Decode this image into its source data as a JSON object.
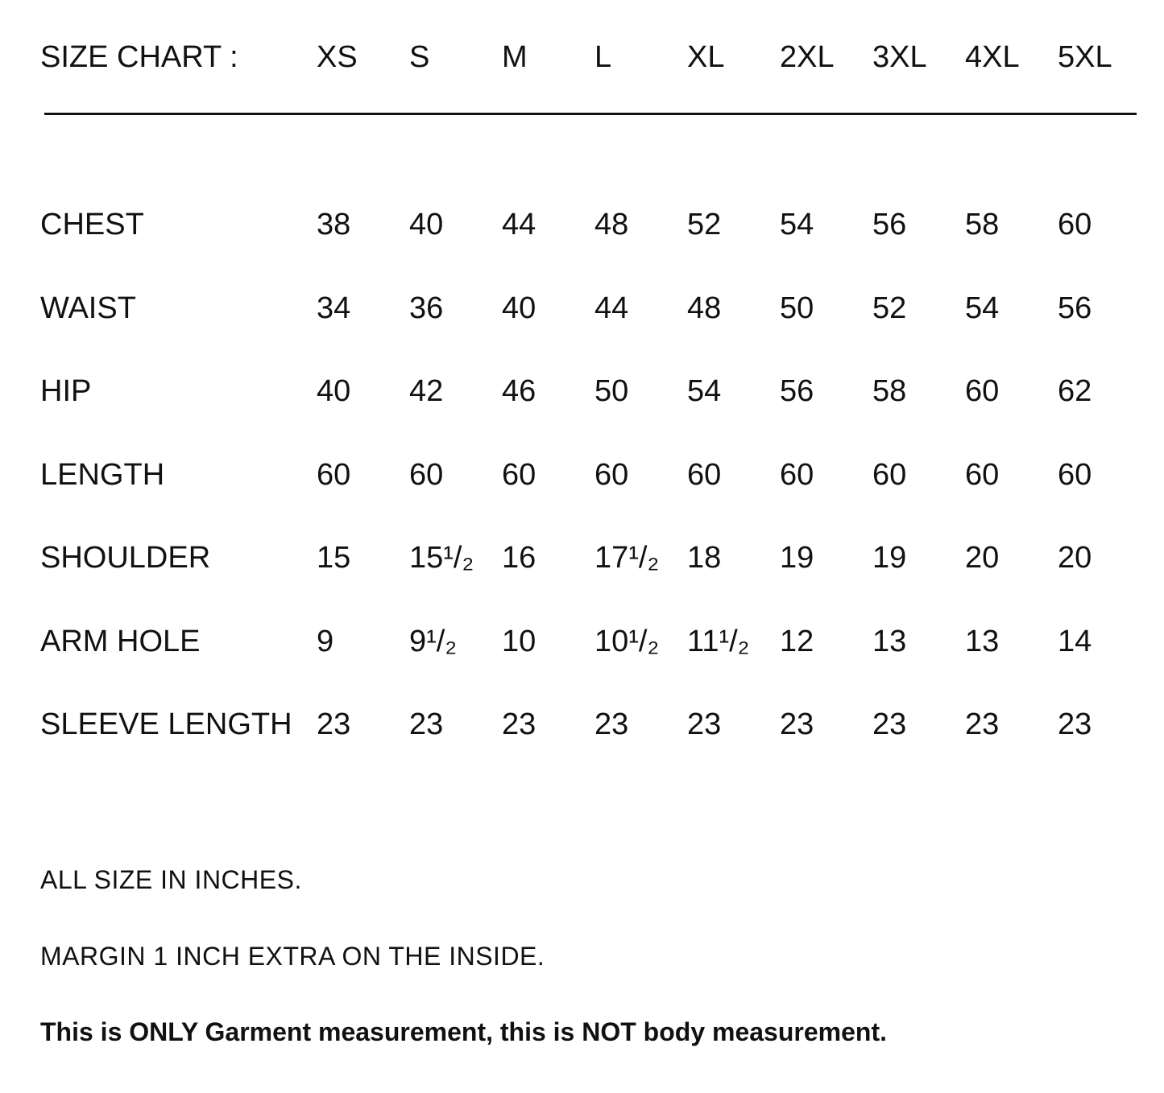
{
  "header": {
    "title": "SIZE CHART :",
    "sizes": [
      "XS",
      "S",
      "M",
      "L",
      "XL",
      "2XL",
      "3XL",
      "4XL",
      "5XL"
    ]
  },
  "table": {
    "rows": [
      {
        "label": "CHEST",
        "values": [
          "38",
          "40",
          "44",
          "48",
          "52",
          "54",
          "56",
          "58",
          "60"
        ]
      },
      {
        "label": "WAIST",
        "values": [
          "34",
          "36",
          "40",
          "44",
          "48",
          "50",
          "52",
          "54",
          "56"
        ]
      },
      {
        "label": "HIP",
        "values": [
          "40",
          "42",
          "46",
          "50",
          "54",
          "56",
          "58",
          "60",
          "62"
        ]
      },
      {
        "label": "LENGTH",
        "values": [
          "60",
          "60",
          "60",
          "60",
          "60",
          "60",
          "60",
          "60",
          "60"
        ]
      },
      {
        "label": "SHOULDER",
        "values": [
          "15",
          "15¹/₂",
          "16",
          "17¹/₂",
          "18",
          "19",
          "19",
          "20",
          "20"
        ]
      },
      {
        "label": "ARM HOLE",
        "values": [
          "9",
          "9¹/₂",
          "10",
          "10¹/₂",
          "11¹/₂",
          "12",
          "13",
          "13",
          "14"
        ]
      },
      {
        "label": "SLEEVE LENGTH",
        "values": [
          "23",
          "23",
          "23",
          "23",
          "23",
          "23",
          "23",
          "23",
          "23"
        ]
      }
    ]
  },
  "notes": [
    "ALL SIZE IN INCHES.",
    "MARGIN 1 INCH EXTRA ON THE INSIDE."
  ],
  "disclaimer": "This is ONLY Garment measurement, this is NOT body measurement."
}
